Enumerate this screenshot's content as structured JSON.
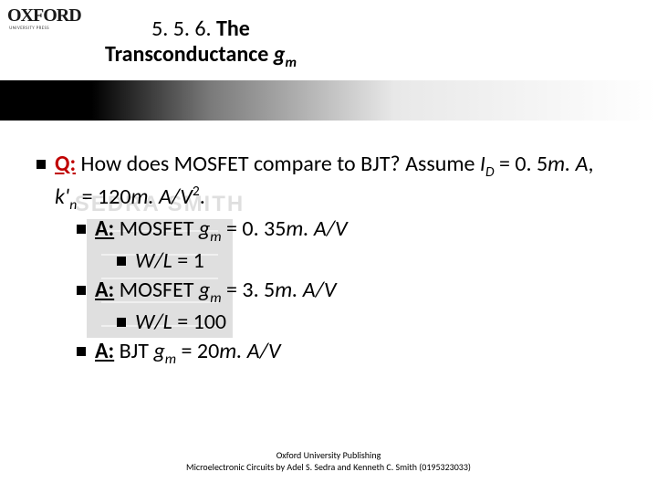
{
  "logo": {
    "brand": "OXFORD",
    "subline": "UNIVERSITY PRESS"
  },
  "title": {
    "section_number": "5. 5. 6. ",
    "word_the": "The",
    "word_transconductance": "Transconductance ",
    "sym_g": "g",
    "sym_m": "m"
  },
  "q": {
    "label": "Q:",
    "text_part1": " How does MOSFET compare to BJT?  Assume ",
    "I": "I",
    "D": "D",
    "eq": " = 0. 5",
    "mA": "m. A",
    "comma": ", ",
    "k": "k'",
    "n": "n",
    "eq2": " = 120",
    "mAV": "m. A/V",
    "sq": "2",
    "dot": "."
  },
  "a1": {
    "label": "A:",
    "text": " MOSFET ",
    "g": "g",
    "m": "m",
    "eq": " = 0. 35",
    "unit": "m. A/V"
  },
  "a1_sub": {
    "wl": "W/L",
    "eq": " = 1"
  },
  "a2": {
    "label": "A:",
    "text": " MOSFET ",
    "g": "g",
    "m": "m",
    "eq": " = 3. 5",
    "unit": "m. A/V"
  },
  "a2_sub": {
    "wl": "W/L",
    "eq": " = 100"
  },
  "a3": {
    "label": "A:",
    "text": " BJT ",
    "g": "g",
    "m": "m",
    "eq": " = 20",
    "unit": "m. A/V"
  },
  "footer": {
    "line1": "Oxford University Publishing",
    "line2": "Microelectronic Circuits by Adel S. Sedra and Kenneth C. Smith (0195323033)"
  },
  "watermark": {
    "text": "SEDRA SMITH"
  }
}
